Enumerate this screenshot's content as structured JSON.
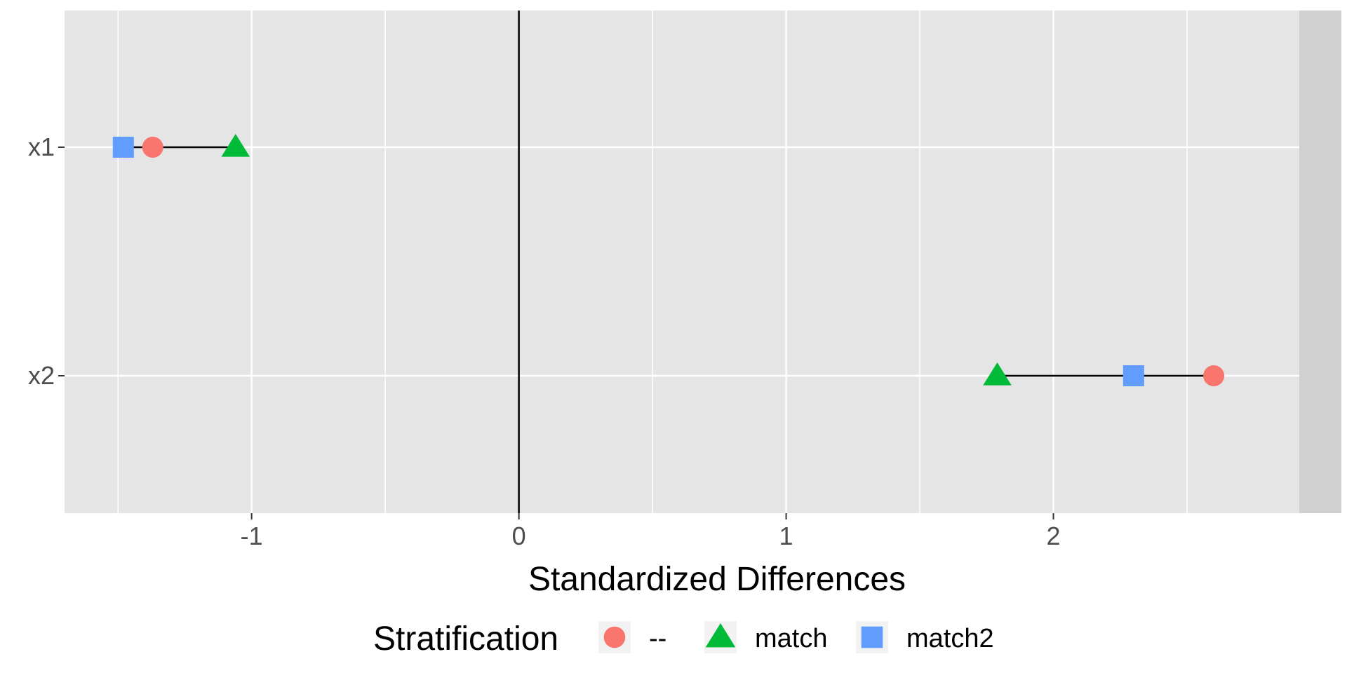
{
  "chart_data": {
    "type": "scatter",
    "xlabel": "Standardized Differences",
    "ylabel": "",
    "x_ticks": [
      -1,
      0,
      1,
      2
    ],
    "x_tick_labels": [
      "-1",
      "0",
      "1",
      "2"
    ],
    "xlim": [
      -1.7,
      2.92
    ],
    "categories": [
      "x1",
      "x2"
    ],
    "reference_line_x": 0,
    "grid": true,
    "legend_position": "bottom",
    "legend_title": "Stratification",
    "series": [
      {
        "name": "--",
        "shape": "circle",
        "color": "#F8766D",
        "values": [
          -1.37,
          2.6
        ]
      },
      {
        "name": "match",
        "shape": "triangle",
        "color": "#00BA38",
        "values": [
          -1.06,
          1.79
        ]
      },
      {
        "name": "match2",
        "shape": "square",
        "color": "#619CFF",
        "values": [
          -1.48,
          2.3
        ]
      }
    ],
    "colors": {
      "panel": "#E5E5E5",
      "strip": "#D0D0D0",
      "grid": "#FFFFFF",
      "zero_line": "#000000",
      "segment": "#000000"
    }
  }
}
